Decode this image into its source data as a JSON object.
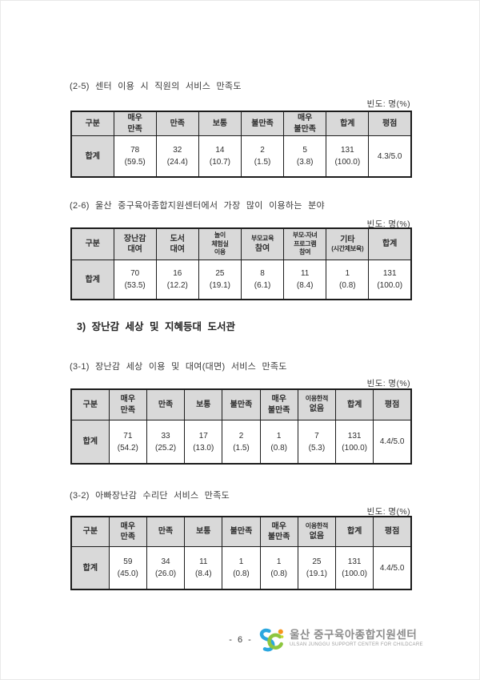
{
  "titles": {
    "s25": "(2-5) 센터 이용 시 직원의 서비스 만족도",
    "s26": "(2-6) 울산 중구육아종합지원센터에서 가장 많이 이용하는 분야",
    "sec3": "3) 장난감 세상 및 지혜등대 도서관",
    "s31": "(3-1) 장난감 세상 이용 및 대여(대면) 서비스 만족도",
    "s32": "(3-2) 아빠장난감 수리단 서비스 만족도"
  },
  "freq_label": "빈도: 명(%)",
  "tables": [
    {
      "name": "staff-service-satisfaction",
      "headers": [
        "구분",
        "매우\n만족",
        "만족",
        "보통",
        "불만족",
        "매우\n불만족",
        "합계",
        "평점"
      ],
      "row_label": "합계",
      "cells": [
        "78\n(59.5)",
        "32\n(24.4)",
        "14\n(10.7)",
        "2\n(1.5)",
        "5\n(3.8)",
        "131\n(100.0)",
        "4.3/5.0"
      ]
    },
    {
      "name": "most-used-service-area",
      "headers": [
        "구분",
        "장난감\n대여",
        "도서\n대여",
        "놀이\n체험실\n이용",
        "부모교육\n참여",
        "부모-자녀\n프로그램\n참여",
        "기타\n(시간제보육)",
        "합계"
      ],
      "row_label": "합계",
      "cells": [
        "70\n(53.5)",
        "16\n(12.2)",
        "25\n(19.1)",
        "8\n(6.1)",
        "11\n(8.4)",
        "1\n(0.8)",
        "131\n(100.0)"
      ]
    },
    {
      "name": "toy-world-rental-satisfaction",
      "headers": [
        "구분",
        "매우\n만족",
        "만족",
        "보통",
        "불만족",
        "매우\n불만족",
        "이용한적\n없음",
        "합계",
        "평점"
      ],
      "row_label": "합계",
      "cells": [
        "71\n(54.2)",
        "33\n(25.2)",
        "17\n(13.0)",
        "2\n(1.5)",
        "1\n(0.8)",
        "7\n(5.3)",
        "131\n(100.0)",
        "4.4/5.0"
      ]
    },
    {
      "name": "dad-toy-repair-satisfaction",
      "headers": [
        "구분",
        "매우\n만족",
        "만족",
        "보통",
        "불만족",
        "매우\n불만족",
        "이용한적\n없음",
        "합계",
        "평점"
      ],
      "row_label": "합계",
      "cells": [
        "59\n(45.0)",
        "34\n(26.0)",
        "11\n(8.4)",
        "1\n(0.8)",
        "1\n(0.8)",
        "25\n(19.1)",
        "131\n(100.0)",
        "4.4/5.0"
      ]
    }
  ],
  "footer": {
    "page_number": "- 6 -",
    "org_ko": "울산 중구육아종합지원센터",
    "org_en": "ULSAN JUNGGU SUPPORT CENTER FOR CHILDCARE"
  },
  "colors": {
    "table_header_bg": "#d9d9d9",
    "logo_blue": "#2ba7df",
    "logo_green": "#8dc63f",
    "logo_orange": "#f7941d",
    "logo_lime": "#c4d82d"
  }
}
